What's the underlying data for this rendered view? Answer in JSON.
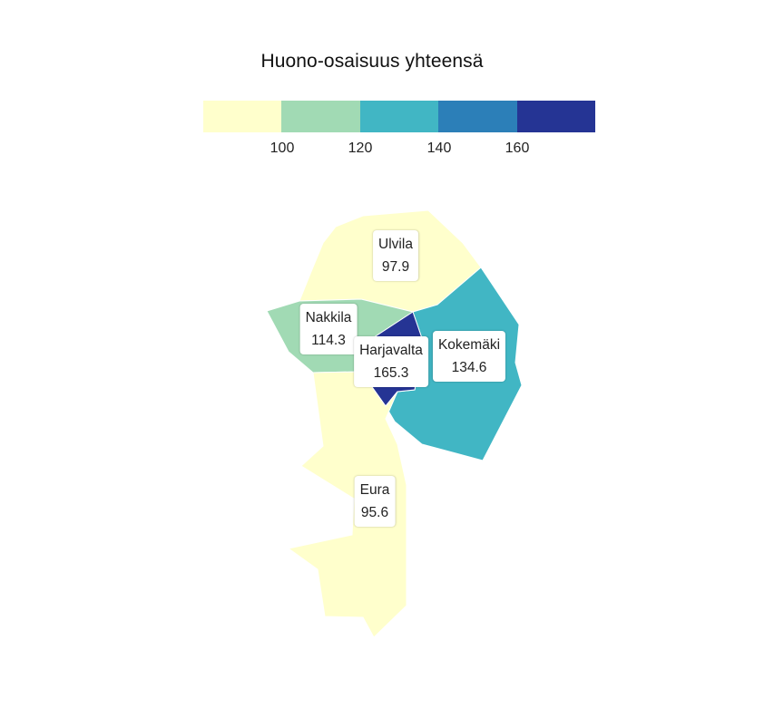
{
  "title": "Huono-osaisuus yhteensä",
  "legend": {
    "colors": [
      "#ffffcc",
      "#a1dab4",
      "#41b6c4",
      "#2c7fb8",
      "#253494"
    ],
    "ticks": [
      "100",
      "120",
      "140",
      "160"
    ]
  },
  "regions": [
    {
      "name": "Ulvila",
      "value": "97.9",
      "color": "#ffffcc"
    },
    {
      "name": "Nakkila",
      "value": "114.3",
      "color": "#a1dab4"
    },
    {
      "name": "Harjavalta",
      "value": "165.3",
      "color": "#253494"
    },
    {
      "name": "Kokemäki",
      "value": "134.6",
      "color": "#41b6c4"
    },
    {
      "name": "Eura",
      "value": "95.6",
      "color": "#ffffcc"
    }
  ]
}
